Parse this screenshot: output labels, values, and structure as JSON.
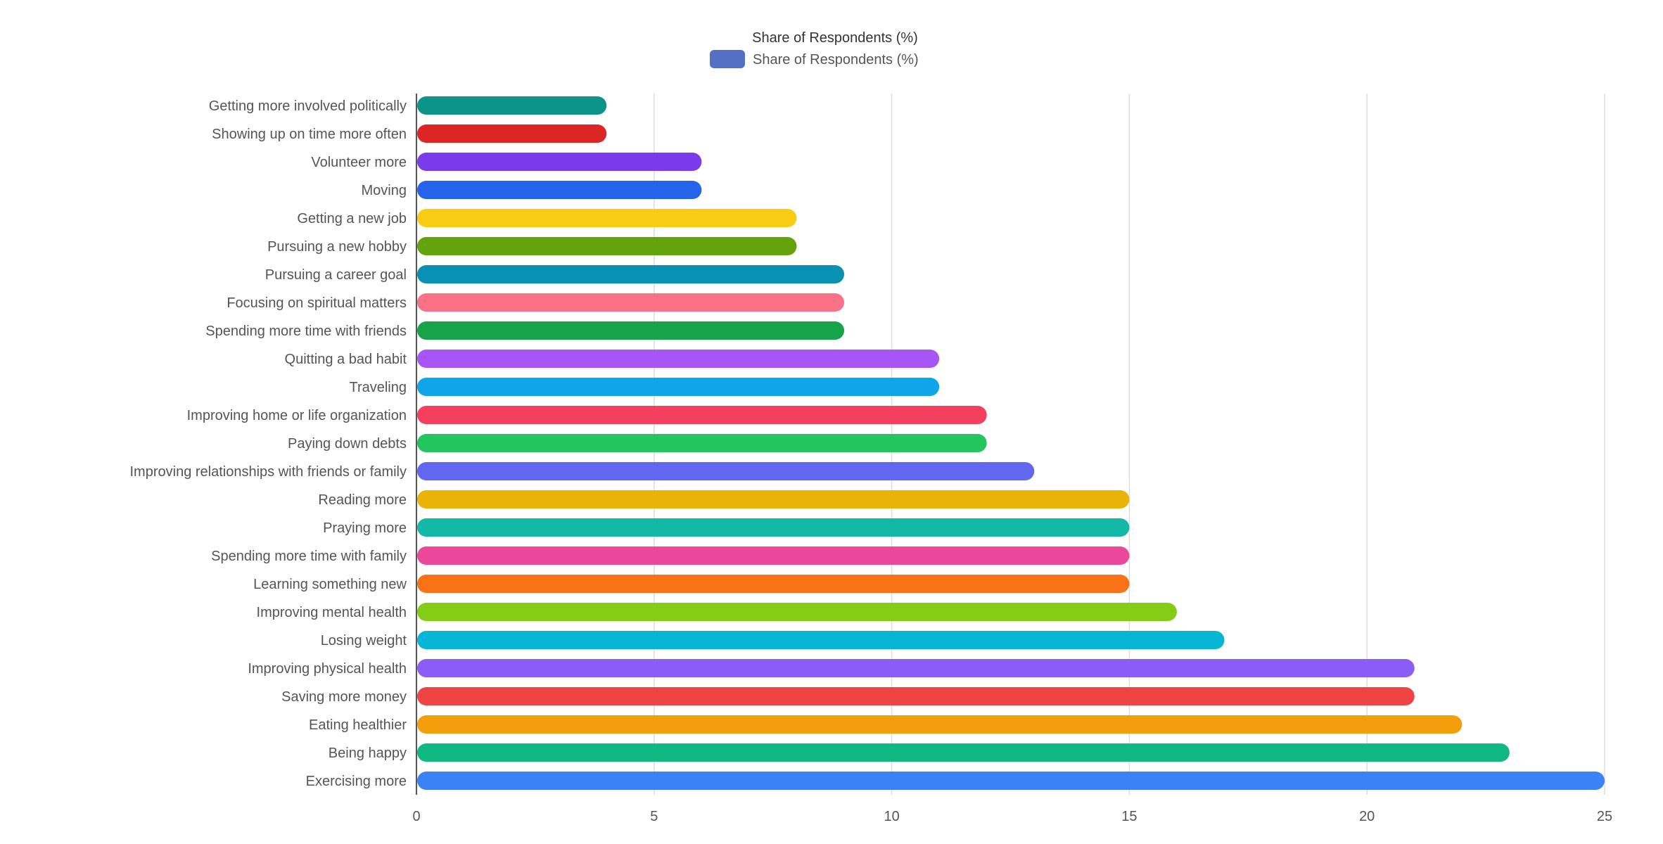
{
  "chart_data": {
    "type": "bar",
    "orientation": "horizontal",
    "title": "Share of Respondents (%)",
    "legend": {
      "position": "top",
      "entries": [
        {
          "name": "Share of Respondents (%)",
          "color": "#5470c6"
        }
      ]
    },
    "xlim": [
      0,
      25
    ],
    "x_ticks": [
      "0",
      "5",
      "10",
      "15",
      "20",
      "25"
    ],
    "grid": true,
    "categories": [
      "Getting more involved politically",
      "Showing up on time more often",
      "Volunteer more",
      "Moving",
      "Getting a new job",
      "Pursuing a new hobby",
      "Pursuing a career goal",
      "Focusing on spiritual matters",
      "Spending more time with friends",
      "Quitting a bad habit",
      "Traveling",
      "Improving home or life organization",
      "Paying down debts",
      "Improving relationships with friends or family",
      "Reading more",
      "Praying more",
      "Spending more time with family",
      "Learning something new",
      "Improving mental health",
      "Losing weight",
      "Improving physical health",
      "Saving more money",
      "Eating healthier",
      "Being happy",
      "Exercising more"
    ],
    "series": [
      {
        "name": "Share of Respondents (%)",
        "values": [
          4,
          4,
          6,
          6,
          8,
          8,
          9,
          9,
          9,
          11,
          11,
          12,
          12,
          13,
          15,
          15,
          15,
          15,
          16,
          17,
          21,
          21,
          22,
          23,
          25
        ]
      }
    ],
    "bar_colors": [
      "#0d9488",
      "#dc2626",
      "#7c3aed",
      "#2563eb",
      "#facc15",
      "#65a30d",
      "#0891b2",
      "#fb7185",
      "#16a34a",
      "#a855f7",
      "#0ea5e9",
      "#f43f5e",
      "#22c55e",
      "#6366f1",
      "#eab308",
      "#14b8a6",
      "#ec4899",
      "#f97316",
      "#84cc16",
      "#06b6d4",
      "#8b5cf6",
      "#ef4444",
      "#f59e0b",
      "#10b981",
      "#3b82f6"
    ]
  }
}
